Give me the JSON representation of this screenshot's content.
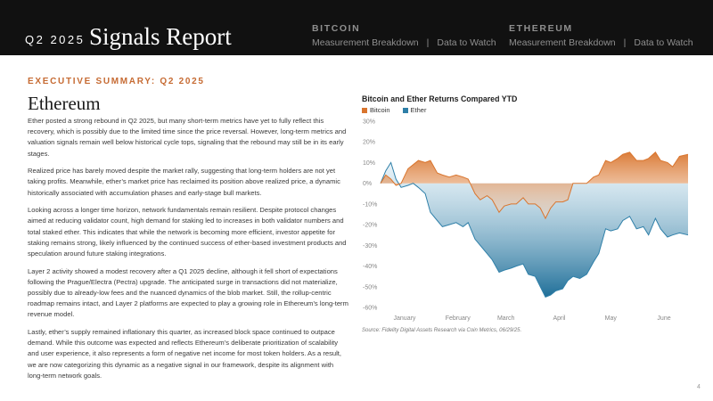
{
  "header": {
    "quarter": "Q2 2025",
    "title": "Signals Report",
    "nav": [
      {
        "heading": "BITCOIN",
        "links": [
          "Measurement Breakdown",
          "Data to Watch"
        ]
      },
      {
        "heading": "ETHEREUM",
        "links": [
          "Measurement Breakdown",
          "Data to Watch"
        ]
      }
    ],
    "separator": "|"
  },
  "content": {
    "kicker": "EXECUTIVE SUMMARY: Q2 2025",
    "heading": "Ethereum",
    "paragraphs": [
      "Ether posted a strong rebound in Q2 2025, but many short-term metrics have yet to fully reflect this recovery, which is possibly due to the limited time since the price reversal. However, long-term metrics and valuation signals remain well below historical cycle tops, signaling that the rebound may still be in its early stages.",
      "Realized price has barely moved despite the market rally, suggesting that long-term holders are not yet taking profits. Meanwhile, ether’s market price has reclaimed its position above realized price, a dynamic historically associated with accumulation phases and early-stage bull markets.",
      "Looking across a longer time horizon, network fundamentals remain resilient. Despite protocol changes aimed at reducing validator count, high demand for staking led to increases in both validator numbers and total staked ether. This indicates that while the network is becoming more efficient, investor appetite for staking remains strong, likely influenced by the continued success of ether-based investment products and speculation around future staking integrations.",
      "Layer 2 activity showed a modest recovery after a Q1 2025 decline, although it fell short of expectations following the Prague/Electra (Pectra) upgrade. The anticipated surge in transactions did not materialize, possibly due to already-low fees and the nuanced dynamics of the blob market. Still, the rollup-centric roadmap remains intact, and Layer 2 platforms are expected to play a growing role in Ethereum’s long-term revenue model.",
      "Lastly, ether’s supply remained inflationary this quarter, as increased block space continued to outpace demand. While this outcome was expected and reflects Ethereum’s deliberate prioritization of scalability and user experience, it also represents a form of negative net income for most token holders. As a result, we are now categorizing this dynamic as a negative signal in our framework, despite its alignment with long-term network goals."
    ]
  },
  "chart_data": {
    "type": "area",
    "title": "Bitcoin and Ether Returns Compared YTD",
    "x_ticks": [
      "January",
      "February",
      "March",
      "April",
      "May",
      "June"
    ],
    "x_tick_dates": [
      "2025-01-15",
      "2025-02-15",
      "2025-03-15",
      "2025-04-15",
      "2025-05-15",
      "2025-06-15"
    ],
    "x_range": [
      "2025-01-01",
      "2025-06-29"
    ],
    "ylim": [
      -60,
      30
    ],
    "yticks": [
      30,
      20,
      10,
      0,
      -10,
      -20,
      -30,
      -40,
      -50,
      -60
    ],
    "ytick_labels": [
      "30%",
      "20%",
      "10%",
      "0%",
      "-10%",
      "-20%",
      "-30%",
      "-40%",
      "-50%",
      "-60%"
    ],
    "grid": false,
    "legend_position": "top-left",
    "series": [
      {
        "name": "Bitcoin",
        "color": "#d9752e",
        "dates": [
          "2025-01-01",
          "2025-01-04",
          "2025-01-07",
          "2025-01-10",
          "2025-01-13",
          "2025-01-17",
          "2025-01-20",
          "2025-01-23",
          "2025-01-27",
          "2025-01-30",
          "2025-02-03",
          "2025-02-06",
          "2025-02-10",
          "2025-02-14",
          "2025-02-18",
          "2025-02-21",
          "2025-02-25",
          "2025-02-28",
          "2025-03-04",
          "2025-03-07",
          "2025-03-11",
          "2025-03-14",
          "2025-03-18",
          "2025-03-21",
          "2025-03-25",
          "2025-03-28",
          "2025-04-01",
          "2025-04-04",
          "2025-04-07",
          "2025-04-10",
          "2025-04-13",
          "2025-04-17",
          "2025-04-20",
          "2025-04-23",
          "2025-04-27",
          "2025-05-01",
          "2025-05-05",
          "2025-05-08",
          "2025-05-12",
          "2025-05-15",
          "2025-05-19",
          "2025-05-22",
          "2025-05-26",
          "2025-05-30",
          "2025-06-03",
          "2025-06-06",
          "2025-06-10",
          "2025-06-13",
          "2025-06-17",
          "2025-06-20",
          "2025-06-24",
          "2025-06-29"
        ],
        "values": [
          0,
          4,
          2,
          -1,
          0,
          7,
          9,
          11,
          10,
          11,
          5,
          4,
          3,
          4,
          3,
          2,
          -5,
          -8,
          -6,
          -8,
          -14,
          -11,
          -10,
          -10,
          -7,
          -10,
          -10,
          -12,
          -17,
          -12,
          -9,
          -9,
          -8,
          0,
          0,
          0,
          3,
          4,
          11,
          10,
          12,
          14,
          15,
          11,
          11,
          12,
          15,
          11,
          10,
          8,
          13,
          14
        ]
      },
      {
        "name": "Ether",
        "color": "#2e7fa8",
        "dates": [
          "2025-01-01",
          "2025-01-04",
          "2025-01-07",
          "2025-01-10",
          "2025-01-13",
          "2025-01-17",
          "2025-01-20",
          "2025-01-23",
          "2025-01-27",
          "2025-01-30",
          "2025-02-03",
          "2025-02-06",
          "2025-02-10",
          "2025-02-14",
          "2025-02-18",
          "2025-02-21",
          "2025-02-25",
          "2025-02-28",
          "2025-03-04",
          "2025-03-07",
          "2025-03-11",
          "2025-03-14",
          "2025-03-18",
          "2025-03-21",
          "2025-03-25",
          "2025-03-28",
          "2025-04-01",
          "2025-04-04",
          "2025-04-07",
          "2025-04-10",
          "2025-04-13",
          "2025-04-17",
          "2025-04-20",
          "2025-04-23",
          "2025-04-27",
          "2025-05-01",
          "2025-05-05",
          "2025-05-08",
          "2025-05-12",
          "2025-05-15",
          "2025-05-19",
          "2025-05-22",
          "2025-05-26",
          "2025-05-30",
          "2025-06-03",
          "2025-06-06",
          "2025-06-10",
          "2025-06-13",
          "2025-06-17",
          "2025-06-20",
          "2025-06-24",
          "2025-06-29"
        ],
        "values": [
          0,
          6,
          10,
          2,
          -2,
          -1,
          0,
          -2,
          -5,
          -14,
          -18,
          -21,
          -20,
          -19,
          -21,
          -19,
          -27,
          -30,
          -34,
          -37,
          -43,
          -42,
          -41,
          -40,
          -39,
          -44,
          -45,
          -50,
          -55,
          -54,
          -52,
          -51,
          -47,
          -45,
          -46,
          -44,
          -38,
          -34,
          -22,
          -23,
          -22,
          -18,
          -16,
          -22,
          -21,
          -25,
          -17,
          -22,
          -26,
          -25,
          -24,
          -25
        ]
      }
    ],
    "source": "Source: Fidelity Digital Assets Research via Coin Metrics, 06/29/25."
  },
  "page_number": "4"
}
